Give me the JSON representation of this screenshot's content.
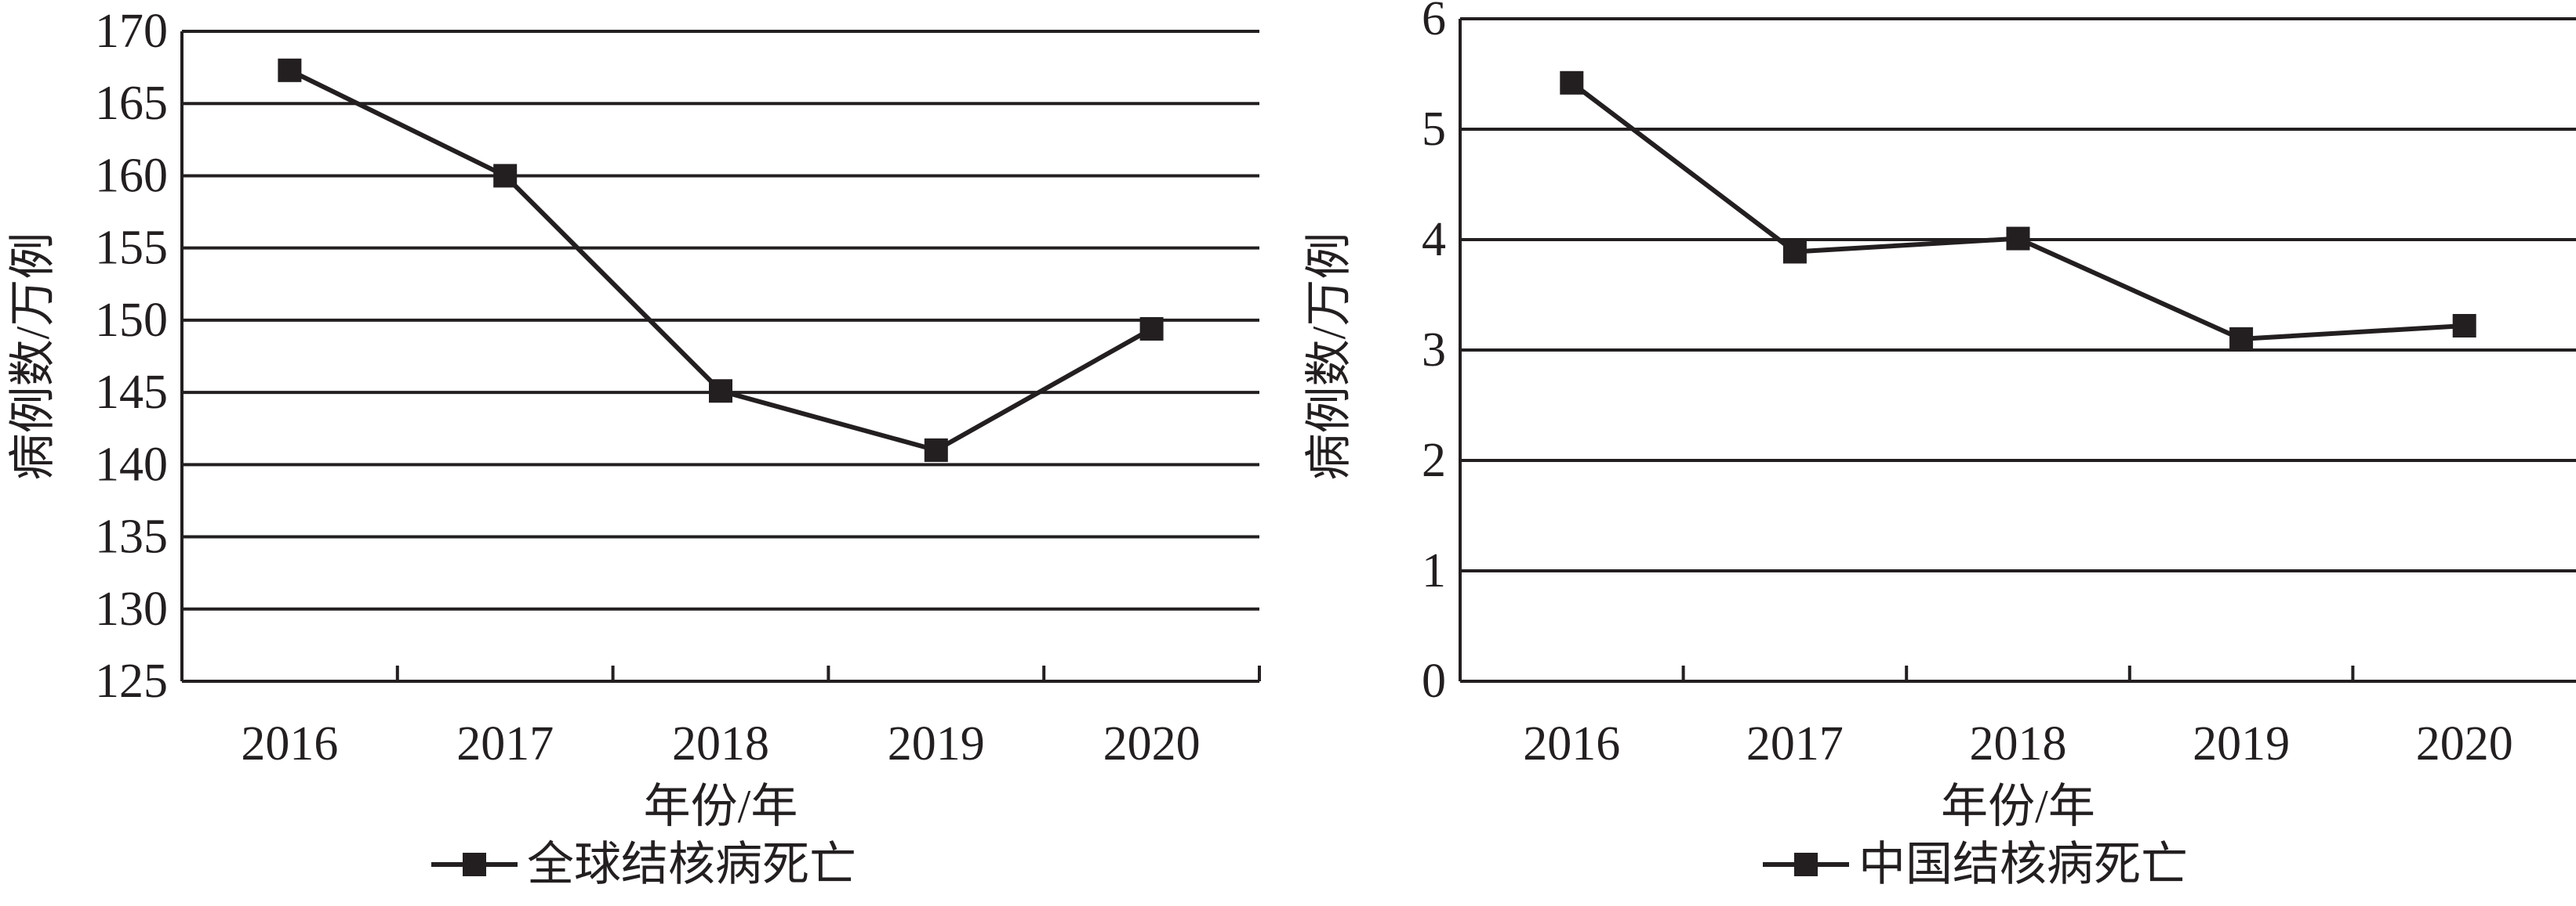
{
  "chart_data": [
    {
      "type": "line",
      "categories": [
        "2016",
        "2017",
        "2018",
        "2019",
        "2020"
      ],
      "series": [
        {
          "name": "全球结核病死亡",
          "values": [
            167.3,
            160.0,
            145.1,
            141.0,
            149.4
          ]
        }
      ],
      "title": "",
      "xlabel": "年份/年",
      "ylabel": "病例数/万例",
      "ylim": [
        125,
        170
      ],
      "yticks": [
        "125",
        "130",
        "135",
        "140",
        "145",
        "150",
        "155",
        "160",
        "165",
        "170"
      ],
      "grid": true,
      "legend_position": "bottom",
      "marker": "square",
      "line_color": "#231f20"
    },
    {
      "type": "line",
      "categories": [
        "2016",
        "2017",
        "2018",
        "2019",
        "2020"
      ],
      "series": [
        {
          "name": "中国结核病死亡",
          "values": [
            5.42,
            3.89,
            4.01,
            3.1,
            3.22
          ]
        }
      ],
      "title": "",
      "xlabel": "年份/年",
      "ylabel": "病例数/万例",
      "ylim": [
        0,
        6
      ],
      "yticks": [
        "0",
        "1",
        "2",
        "3",
        "4",
        "5",
        "6"
      ],
      "grid": true,
      "legend_position": "bottom",
      "marker": "square",
      "line_color": "#231f20"
    }
  ]
}
